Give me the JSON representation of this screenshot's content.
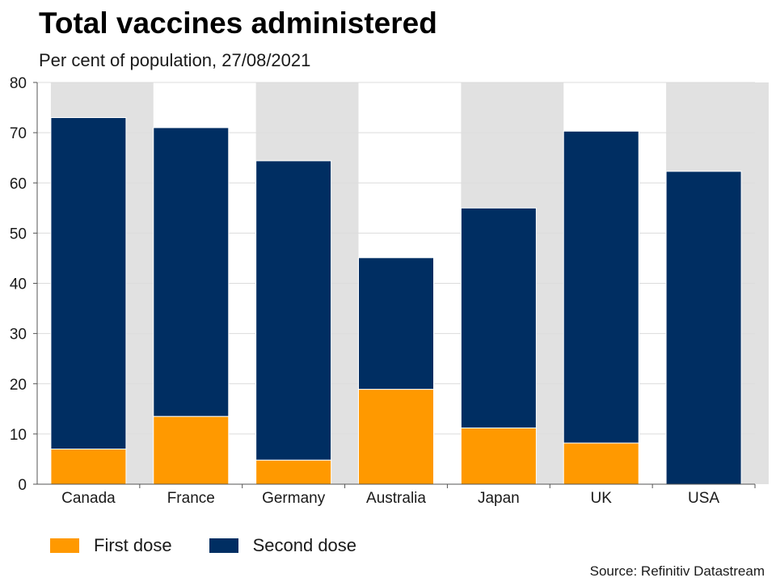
{
  "chart_data": {
    "type": "bar",
    "stacked": true,
    "title": "Total vaccines administered",
    "subtitle": "Per cent of population, 27/08/2021",
    "categories": [
      "Canada",
      "France",
      "Germany",
      "Australia",
      "Japan",
      "UK",
      "USA"
    ],
    "series": [
      {
        "name": "First dose",
        "color": "#ff9900",
        "values": [
          7.0,
          13.5,
          4.8,
          18.9,
          11.2,
          8.2,
          0
        ]
      },
      {
        "name": "Second dose",
        "color": "#002e62",
        "values": [
          66.0,
          57.5,
          59.6,
          26.2,
          43.8,
          62.1,
          62.3
        ]
      }
    ],
    "ylim": [
      0,
      80
    ],
    "yticks": [
      0,
      10,
      20,
      30,
      40,
      50,
      60,
      70,
      80
    ],
    "xlabel": "",
    "ylabel": "",
    "grid": true,
    "legend_position": "bottom-left",
    "source": "Source: Refinitiv Datastream"
  }
}
